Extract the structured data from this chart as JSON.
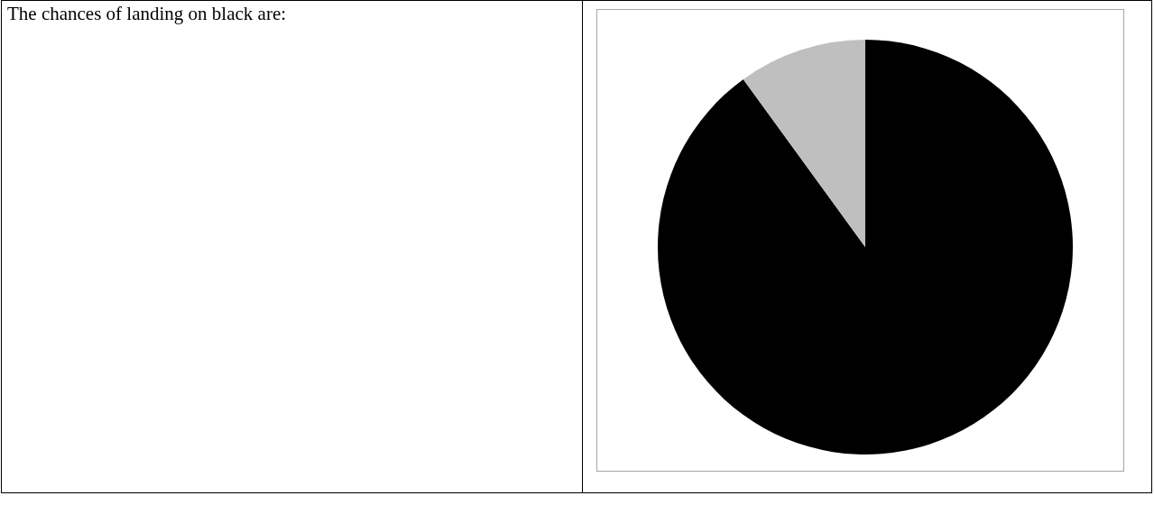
{
  "chart_data": {
    "type": "pie",
    "title": "The chances of landing on black are:",
    "categories": [
      null,
      null
    ],
    "values": [
      90,
      10
    ],
    "colors": [
      "#000000",
      "#bfbfbf"
    ],
    "legend": false
  }
}
